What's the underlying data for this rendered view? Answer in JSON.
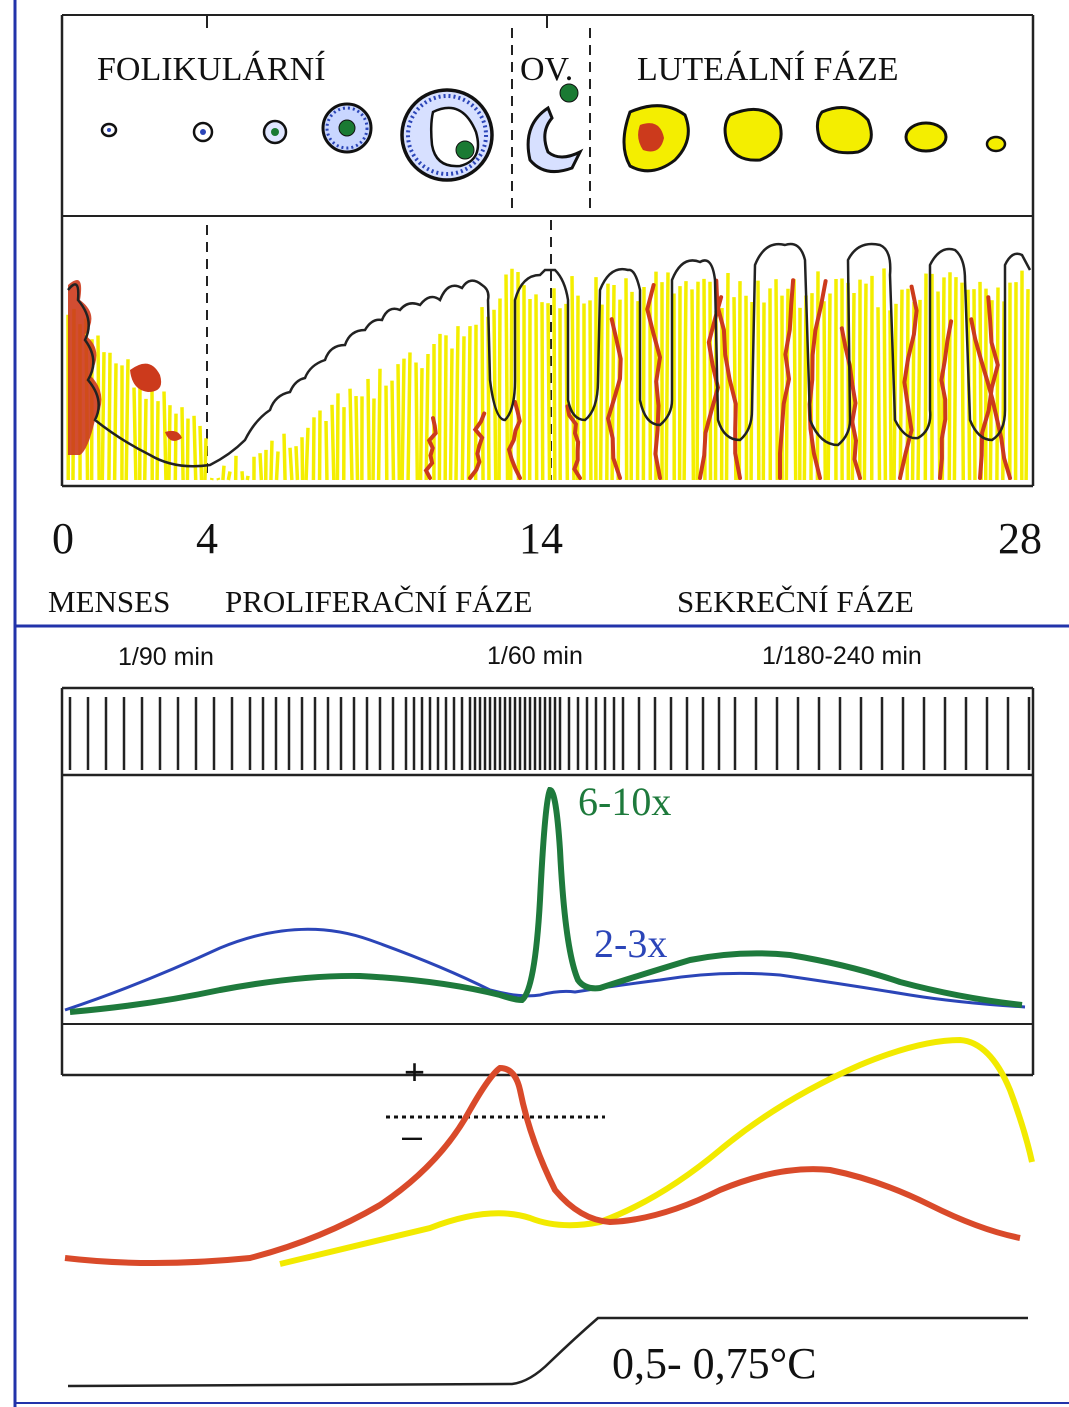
{
  "phases_top": {
    "folicular": "FOLIKULÁRNÍ",
    "ovulation": "OV.",
    "luteal": "LUTEÁLNÍ FÁZE"
  },
  "days": {
    "d0": "0",
    "d4": "4",
    "d14": "14",
    "d28": "28"
  },
  "endometrium_phases": {
    "menses": "MENSES",
    "proliferative": "PROLIFERAČNÍ FÁZE",
    "secretory": "SEKREČNÍ FÁZE"
  },
  "pulse_frequency": {
    "follicular": "1/90 min",
    "ovulatory": "1/60 min",
    "luteal": "1/180-240 min"
  },
  "gonadotropins": {
    "lh_surge": "6-10x",
    "fsh_surge": "2-3x"
  },
  "feedback": {
    "positive": "+",
    "negative": "–"
  },
  "temperature": {
    "rise": "0,5- 0,75°C"
  },
  "colors": {
    "border_blue": "#2233aa",
    "lh_green": "#1e7a3c",
    "fsh_blue": "#2b45b8",
    "estradiol_red": "#d94a2a",
    "progesterone_yellow": "#f2ea00",
    "follicle_green": "#1a7a33",
    "endometrium_red": "#cc3a1c",
    "endometrium_yellow": "#f4ee00"
  },
  "icons": {
    "oocyte": "green-dot-icon",
    "corpus_luteum": "yellow-blob-icon"
  }
}
